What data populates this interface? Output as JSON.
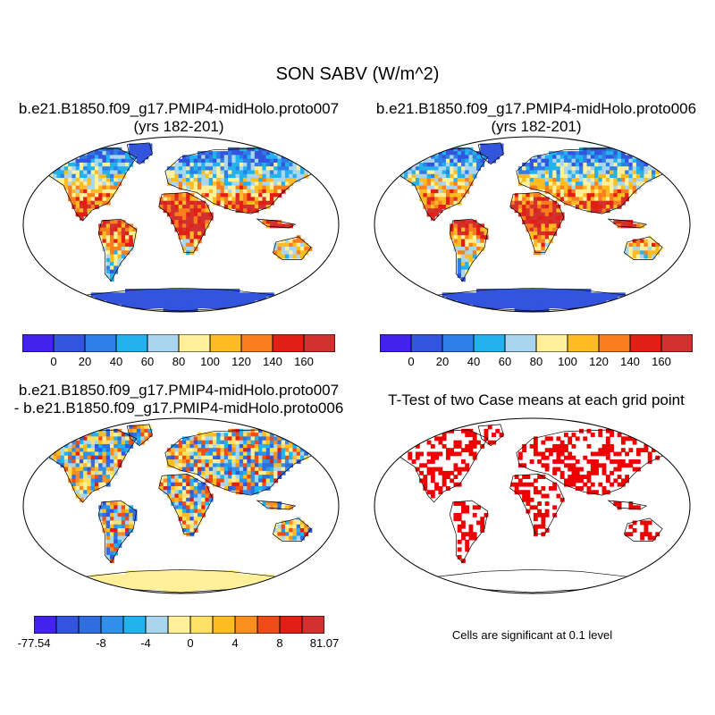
{
  "main_title": "SON SABV (W/m^2)",
  "panels": {
    "top_left": {
      "title_line1": "b.e21.B1850.f09_g17.PMIP4-midHolo.proto007",
      "title_line2": "(yrs 182-201)"
    },
    "top_right": {
      "title_line1": "b.e21.B1850.f09_g17.PMIP4-midHolo.proto006",
      "title_line2": "(yrs 182-201)"
    },
    "bottom_left": {
      "title_line1": "b.e21.B1850.f09_g17.PMIP4-midHolo.proto007",
      "title_line2": "- b.e21.B1850.f09_g17.PMIP4-midHolo.proto006"
    },
    "bottom_right": {
      "title_line1": "T-Test of two Case means at each grid point",
      "note": "Cells are significant at 0.1 level"
    }
  },
  "colorbar_abs": {
    "colors": [
      "#4422ee",
      "#3355dd",
      "#2f7ee8",
      "#22b2ee",
      "#a8d6ee",
      "#fff099",
      "#fdbd22",
      "#fb7e1e",
      "#e21f14",
      "#d2312f"
    ],
    "tick_labels": [
      "0",
      "20",
      "40",
      "60",
      "80",
      "100",
      "120",
      "140",
      "160"
    ]
  },
  "colorbar_diff": {
    "colors": [
      "#4422ee",
      "#3355dd",
      "#2f6ee0",
      "#2f90ec",
      "#22b2ee",
      "#a8d6ee",
      "#fff099",
      "#ffe066",
      "#fdbd22",
      "#fb8e1e",
      "#ef4d17",
      "#e21f14",
      "#d2312f"
    ],
    "tick_labels": [
      "-77.54",
      "-8",
      "-4",
      "0",
      "4",
      "8",
      "81.07"
    ]
  },
  "map_colors": {
    "ocean": "#ffffff",
    "antarctica_abs": "#3355dd",
    "antarctica_diff": "#fff099",
    "ttest_significant": "#ee0000"
  }
}
